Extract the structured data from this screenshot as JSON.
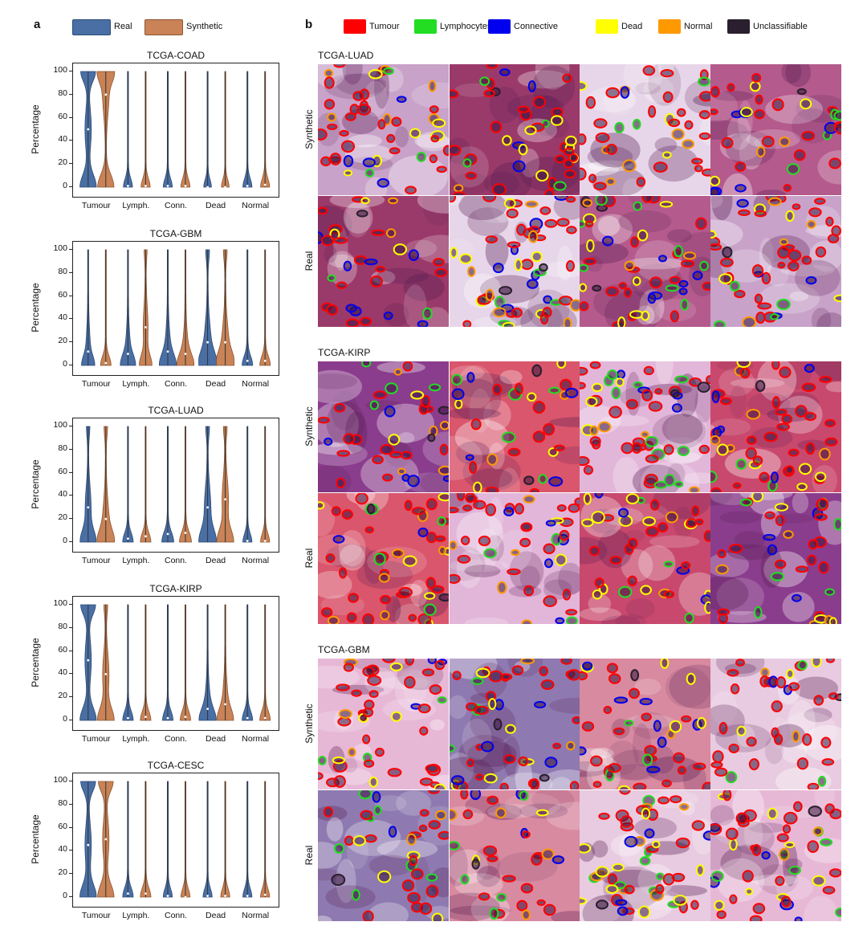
{
  "panel_a": {
    "letter": "a",
    "legend": [
      {
        "label": "Real",
        "color": "#4a6fa5"
      },
      {
        "label": "Synthetic",
        "color": "#c98356"
      }
    ]
  },
  "panel_b": {
    "letter": "b",
    "legend": [
      {
        "label": "Tumour",
        "color": "#ff0000"
      },
      {
        "label": "Lymphocytes",
        "color": "#22dd22"
      },
      {
        "label": "Connective",
        "color": "#0000ee"
      },
      {
        "label": "Dead",
        "color": "#ffff00"
      },
      {
        "label": "Normal",
        "color": "#ff9900"
      },
      {
        "label": "Unclassifiable",
        "color": "#2a1f2e"
      }
    ],
    "row_labels": {
      "synthetic": "Synthetic",
      "real": "Real"
    },
    "groups": [
      {
        "title": "TCGA-LUAD",
        "tint": [
          "#c8a2c8",
          "#9a3a6a",
          "#e7d6e9",
          "#b45a8c"
        ]
      },
      {
        "title": "TCGA-KIRP",
        "tint": [
          "#8a3d8c",
          "#d9566c",
          "#e2b6d9",
          "#c8496d"
        ]
      },
      {
        "title": "TCGA-GBM",
        "tint": [
          "#e7b8d6",
          "#8e7ab0",
          "#d88aa0",
          "#e8cbe0"
        ]
      }
    ]
  },
  "chart_data": [
    {
      "type": "violin",
      "title": "TCGA-COAD",
      "ylabel": "Percentage",
      "ylim": [
        0,
        100
      ],
      "yticks": [
        0,
        20,
        40,
        60,
        80,
        100
      ],
      "categories": [
        "Tumour",
        "Lymph.",
        "Conn.",
        "Dead",
        "Normal"
      ],
      "series": [
        {
          "name": "Real",
          "median": [
            50,
            1,
            1,
            0,
            1
          ],
          "max": [
            100,
            100,
            100,
            100,
            100
          ],
          "spread": [
            0.9,
            0.4,
            0.4,
            0.3,
            0.4
          ]
        },
        {
          "name": "Synthetic",
          "median": [
            80,
            1,
            1,
            0,
            2
          ],
          "max": [
            100,
            100,
            100,
            100,
            100
          ],
          "spread": [
            0.9,
            0.4,
            0.4,
            0.3,
            0.4
          ]
        }
      ]
    },
    {
      "type": "violin",
      "title": "TCGA-GBM",
      "ylabel": "Percentage",
      "ylim": [
        0,
        100
      ],
      "yticks": [
        0,
        20,
        40,
        60,
        80,
        100
      ],
      "categories": [
        "Tumour",
        "Lymph.",
        "Conn.",
        "Dead",
        "Normal"
      ],
      "series": [
        {
          "name": "Real",
          "median": [
            12,
            10,
            12,
            20,
            4
          ],
          "max": [
            100,
            100,
            100,
            100,
            100
          ],
          "spread": [
            0.5,
            0.6,
            0.7,
            0.9,
            0.5
          ]
        },
        {
          "name": "Synthetic",
          "median": [
            2,
            33,
            10,
            20,
            4
          ],
          "max": [
            100,
            100,
            100,
            100,
            100
          ],
          "spread": [
            0.5,
            0.6,
            0.7,
            0.9,
            0.5
          ]
        }
      ]
    },
    {
      "type": "violin",
      "title": "TCGA-LUAD",
      "ylabel": "Percentage",
      "ylim": [
        0,
        100
      ],
      "yticks": [
        0,
        20,
        40,
        60,
        80,
        100
      ],
      "categories": [
        "Tumour",
        "Lymph.",
        "Conn.",
        "Dead",
        "Normal"
      ],
      "series": [
        {
          "name": "Real",
          "median": [
            30,
            3,
            7,
            30,
            1
          ],
          "max": [
            100,
            100,
            100,
            100,
            100
          ],
          "spread": [
            0.8,
            0.5,
            0.6,
            0.9,
            0.4
          ]
        },
        {
          "name": "Synthetic",
          "median": [
            20,
            5,
            8,
            37,
            1
          ],
          "max": [
            100,
            100,
            100,
            100,
            100
          ],
          "spread": [
            0.8,
            0.5,
            0.6,
            0.9,
            0.4
          ]
        }
      ]
    },
    {
      "type": "violin",
      "title": "TCGA-KIRP",
      "ylabel": "Percentage",
      "ylim": [
        0,
        100
      ],
      "yticks": [
        0,
        20,
        40,
        60,
        80,
        100
      ],
      "categories": [
        "Tumour",
        "Lymph.",
        "Conn.",
        "Dead",
        "Normal"
      ],
      "series": [
        {
          "name": "Real",
          "median": [
            52,
            2,
            2,
            10,
            2
          ],
          "max": [
            100,
            100,
            100,
            100,
            100
          ],
          "spread": [
            0.9,
            0.5,
            0.5,
            0.7,
            0.5
          ]
        },
        {
          "name": "Synthetic",
          "median": [
            40,
            3,
            3,
            14,
            2
          ],
          "max": [
            100,
            100,
            100,
            100,
            100
          ],
          "spread": [
            0.9,
            0.5,
            0.5,
            0.7,
            0.5
          ]
        }
      ]
    },
    {
      "type": "violin",
      "title": "TCGA-CESC",
      "ylabel": "Percentage",
      "ylim": [
        0,
        100
      ],
      "yticks": [
        0,
        20,
        40,
        60,
        80,
        100
      ],
      "categories": [
        "Tumour",
        "Lymph.",
        "Conn.",
        "Dead",
        "Normal"
      ],
      "series": [
        {
          "name": "Real",
          "median": [
            45,
            3,
            1,
            1,
            1
          ],
          "max": [
            100,
            100,
            100,
            100,
            100
          ],
          "spread": [
            0.9,
            0.5,
            0.4,
            0.4,
            0.4
          ]
        },
        {
          "name": "Synthetic",
          "median": [
            50,
            3,
            0,
            1,
            2
          ],
          "max": [
            100,
            100,
            100,
            100,
            100
          ],
          "spread": [
            0.9,
            0.5,
            0.4,
            0.4,
            0.4
          ]
        }
      ]
    }
  ]
}
